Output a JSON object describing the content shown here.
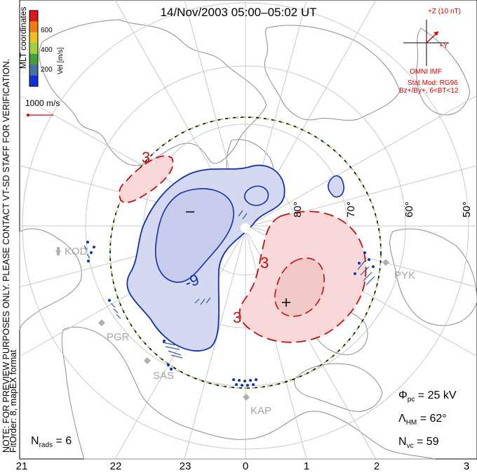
{
  "title": "14/Nov/2003 05:00–05:02 UT",
  "colorbar": {
    "ticks": [
      "600",
      "400",
      "200"
    ],
    "label": "Vel [m/s]",
    "colors": [
      "#e01818",
      "#f07a14",
      "#f0c020",
      "#a0d040",
      "#40a040",
      "#4a70a0",
      "#1030e0"
    ]
  },
  "coordinates_label": "MLT coordinates",
  "side_note": "NOTE: FOR PREVIEW PURPOSES ONLY. PLEASE CONTACT VT-SD STAFF FOR VERIFICATION.",
  "fit_order": "FitOrder: 8, mapEX format",
  "scale_vector_label": "1000 m/s",
  "imf": {
    "z_label": "+Z (10 nT)",
    "y_label": "+Y",
    "source": "OMNI IMF",
    "model": "Stat Mod: RG96",
    "model_params": "Bz+/By+, 6<BT<12"
  },
  "stats": {
    "phi_pc_label": "Φ",
    "phi_pc_sub": "pc",
    "phi_pc_value": "=  25 kV",
    "lambda_label": "Λ",
    "lambda_sub": "HM",
    "lambda_value": "=  62°",
    "nvc_label": "N",
    "nvc_sub": "vc",
    "nvc_value": "=  59",
    "nrads_label": "N",
    "nrads_sub": "rads",
    "nrads_value": "=  6"
  },
  "mlt_labels": [
    "21",
    "22",
    "23",
    "0",
    "1",
    "2",
    "3"
  ],
  "lat_labels": [
    "80°",
    "70°",
    "60°",
    "50°"
  ],
  "stations": [
    "KOD",
    "PGR",
    "SAS",
    "KAP",
    "PYK"
  ],
  "contour_labels": {
    "neg": "-9",
    "pos": "3",
    "pos_outer": "3",
    "pos_upper": "3",
    "min_symbol": "–",
    "max_symbol": "+"
  },
  "contour_colors": {
    "neg": "#1030b0",
    "pos": "#c01010",
    "neg_fill": "#d4d8f0",
    "pos_fill": "#f8d8d8",
    "hmb": "#000000",
    "hmb_dash": "#90d060"
  }
}
